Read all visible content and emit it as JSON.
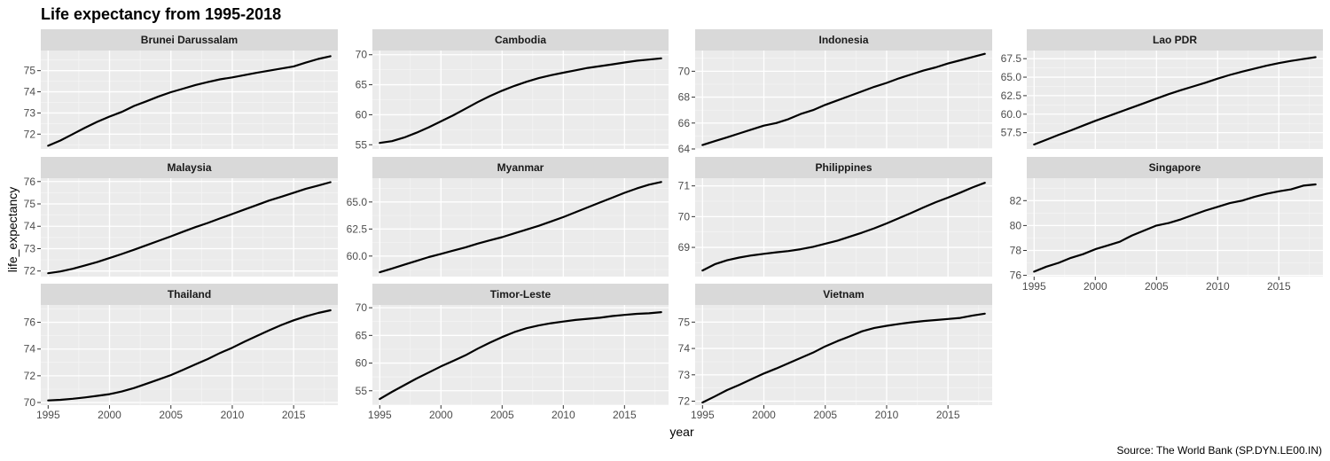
{
  "chart_data": {
    "type": "line",
    "title": "Life expectancy from 1995-2018",
    "xlabel": "year",
    "ylabel": "life_expectancy",
    "caption": "Source: The World Bank (SP.DYN.LE00.IN)",
    "grid": true,
    "facet_layout": "3 rows x 4 columns, free y scales",
    "x": [
      1995,
      1996,
      1997,
      1998,
      1999,
      2000,
      2001,
      2002,
      2003,
      2004,
      2005,
      2006,
      2007,
      2008,
      2009,
      2010,
      2011,
      2012,
      2013,
      2014,
      2015,
      2016,
      2017,
      2018
    ],
    "xlim": [
      1994.4,
      2018.6
    ],
    "x_ticks": [
      1995,
      2000,
      2005,
      2010,
      2015
    ],
    "line_color": "#000000",
    "panels": [
      {
        "name": "Brunei Darussalam",
        "ylim": [
          71.3,
          75.95
        ],
        "y_ticks": [
          72,
          73,
          74,
          75
        ],
        "values": [
          71.45,
          71.7,
          72.0,
          72.3,
          72.58,
          72.83,
          73.05,
          73.33,
          73.55,
          73.78,
          73.98,
          74.15,
          74.32,
          74.46,
          74.59,
          74.68,
          74.79,
          74.9,
          75.0,
          75.1,
          75.2,
          75.38,
          75.55,
          75.68
        ]
      },
      {
        "name": "Cambodia",
        "ylim": [
          54.3,
          70.7
        ],
        "y_ticks": [
          55,
          60,
          65,
          70
        ],
        "values": [
          55.3,
          55.6,
          56.2,
          57.0,
          57.9,
          58.9,
          59.9,
          61.0,
          62.1,
          63.1,
          64.0,
          64.8,
          65.5,
          66.1,
          66.6,
          67.0,
          67.4,
          67.8,
          68.1,
          68.4,
          68.7,
          69.0,
          69.2,
          69.4
        ]
      },
      {
        "name": "Indonesia",
        "ylim": [
          64.0,
          71.6
        ],
        "y_ticks": [
          64,
          66,
          68,
          70
        ],
        "values": [
          64.3,
          64.6,
          64.9,
          65.2,
          65.5,
          65.8,
          66.0,
          66.3,
          66.7,
          67.0,
          67.4,
          67.75,
          68.1,
          68.45,
          68.8,
          69.1,
          69.45,
          69.75,
          70.05,
          70.3,
          70.6,
          70.85,
          71.1,
          71.35
        ]
      },
      {
        "name": "Lao PDR",
        "ylim": [
          55.3,
          68.6
        ],
        "y_ticks": [
          57.5,
          60.0,
          62.5,
          65.0,
          67.5
        ],
        "values": [
          55.9,
          56.55,
          57.2,
          57.8,
          58.45,
          59.1,
          59.7,
          60.3,
          60.9,
          61.5,
          62.1,
          62.7,
          63.25,
          63.75,
          64.25,
          64.8,
          65.3,
          65.75,
          66.15,
          66.55,
          66.9,
          67.2,
          67.45,
          67.7
        ]
      },
      {
        "name": "Malaysia",
        "ylim": [
          71.75,
          76.15
        ],
        "y_ticks": [
          72,
          73,
          74,
          75,
          76
        ],
        "values": [
          71.9,
          71.98,
          72.1,
          72.25,
          72.4,
          72.58,
          72.76,
          72.95,
          73.15,
          73.35,
          73.55,
          73.76,
          73.96,
          74.15,
          74.35,
          74.55,
          74.75,
          74.95,
          75.15,
          75.32,
          75.5,
          75.68,
          75.82,
          75.97
        ]
      },
      {
        "name": "Myanmar",
        "ylim": [
          58.1,
          67.2
        ],
        "y_ticks": [
          60.0,
          62.5,
          65.0
        ],
        "values": [
          58.5,
          58.85,
          59.2,
          59.55,
          59.9,
          60.2,
          60.5,
          60.8,
          61.15,
          61.45,
          61.75,
          62.1,
          62.45,
          62.8,
          63.2,
          63.6,
          64.05,
          64.5,
          64.95,
          65.4,
          65.85,
          66.25,
          66.6,
          66.85
        ]
      },
      {
        "name": "Philippines",
        "ylim": [
          68.05,
          71.25
        ],
        "y_ticks": [
          69,
          70,
          71
        ],
        "values": [
          68.25,
          68.45,
          68.58,
          68.67,
          68.74,
          68.79,
          68.84,
          68.88,
          68.94,
          69.02,
          69.12,
          69.22,
          69.35,
          69.48,
          69.62,
          69.78,
          69.95,
          70.12,
          70.3,
          70.47,
          70.62,
          70.78,
          70.95,
          71.1
        ]
      },
      {
        "name": "Singapore",
        "ylim": [
          75.9,
          83.8
        ],
        "y_ticks": [
          76,
          78,
          80,
          82
        ],
        "values": [
          76.3,
          76.7,
          77.0,
          77.4,
          77.7,
          78.1,
          78.4,
          78.7,
          79.2,
          79.6,
          80.0,
          80.2,
          80.5,
          80.85,
          81.2,
          81.5,
          81.8,
          82.0,
          82.3,
          82.55,
          82.75,
          82.9,
          83.2,
          83.3
        ]
      },
      {
        "name": "Thailand",
        "ylim": [
          69.8,
          77.3
        ],
        "y_ticks": [
          70,
          72,
          74,
          76
        ],
        "values": [
          70.15,
          70.2,
          70.28,
          70.38,
          70.5,
          70.62,
          70.82,
          71.08,
          71.4,
          71.72,
          72.05,
          72.45,
          72.85,
          73.25,
          73.7,
          74.1,
          74.55,
          74.98,
          75.4,
          75.8,
          76.15,
          76.45,
          76.7,
          76.9
        ]
      },
      {
        "name": "Timor-Leste",
        "ylim": [
          52.4,
          70.5
        ],
        "y_ticks": [
          55,
          60,
          65,
          70
        ],
        "values": [
          53.5,
          54.8,
          56.0,
          57.2,
          58.3,
          59.4,
          60.4,
          61.4,
          62.6,
          63.7,
          64.7,
          65.6,
          66.3,
          66.8,
          67.2,
          67.5,
          67.8,
          68.0,
          68.2,
          68.5,
          68.7,
          68.9,
          69.0,
          69.2
        ]
      },
      {
        "name": "Vietnam",
        "ylim": [
          71.85,
          75.65
        ],
        "y_ticks": [
          72,
          73,
          74,
          75
        ],
        "values": [
          71.95,
          72.18,
          72.42,
          72.62,
          72.84,
          73.05,
          73.24,
          73.44,
          73.64,
          73.84,
          74.08,
          74.28,
          74.46,
          74.65,
          74.78,
          74.86,
          74.93,
          74.99,
          75.04,
          75.08,
          75.12,
          75.16,
          75.25,
          75.32
        ]
      }
    ]
  }
}
